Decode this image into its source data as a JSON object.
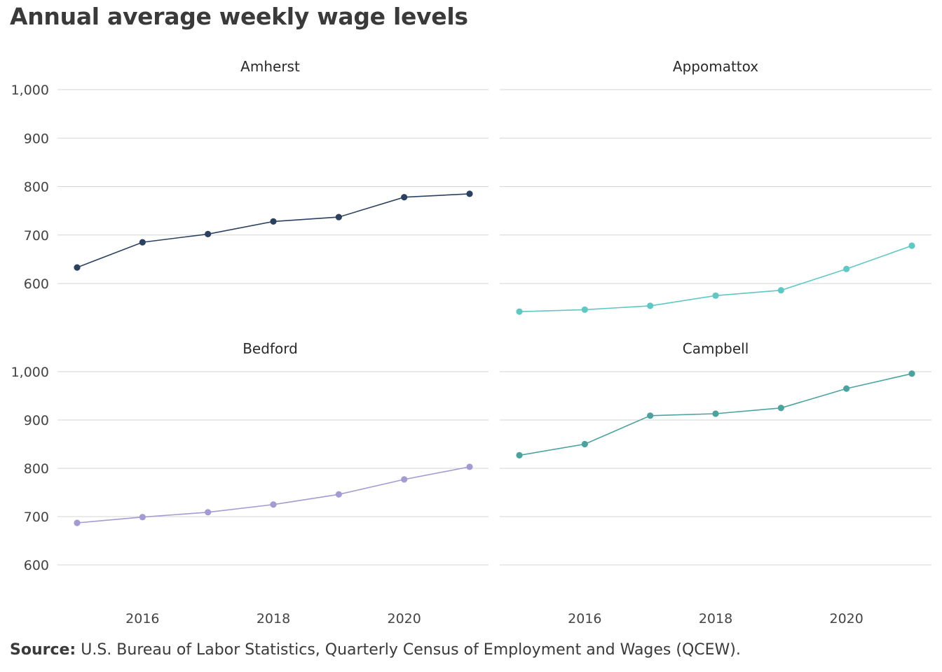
{
  "title": "Annual average weekly wage levels",
  "source": {
    "label": "Source:",
    "text": "U.S. Bureau of Labor Statistics, Quarterly Census of Employment and Wages (QCEW)."
  },
  "colors": {
    "Amherst": "#2b4160",
    "Appomattox": "#5ec8c4",
    "Bedford": "#a49bd3",
    "Campbell": "#4aa39e",
    "grid": "#d6d6d6",
    "tick_text": "#444444"
  },
  "chart_data": {
    "type": "line",
    "layout": "small-multiples 2x2",
    "x": [
      2015,
      2016,
      2017,
      2018,
      2019,
      2020,
      2021
    ],
    "x_ticks": [
      2016,
      2018,
      2020
    ],
    "x_tick_labels": [
      "2016",
      "2018",
      "2020"
    ],
    "y_ticks": [
      600,
      700,
      800,
      900,
      1000
    ],
    "y_tick_labels": [
      "600",
      "700",
      "800",
      "900",
      "1,000"
    ],
    "ylim": [
      530,
      1000
    ],
    "grid": true,
    "legend": "none",
    "series": [
      {
        "name": "Amherst",
        "values": [
          633,
          685,
          702,
          728,
          737,
          778,
          785
        ]
      },
      {
        "name": "Appomattox",
        "values": [
          542,
          546,
          554,
          575,
          586,
          630,
          678
        ]
      },
      {
        "name": "Bedford",
        "values": [
          687,
          699,
          709,
          725,
          746,
          777,
          803
        ]
      },
      {
        "name": "Campbell",
        "values": [
          827,
          850,
          909,
          913,
          925,
          965,
          996
        ]
      }
    ]
  }
}
